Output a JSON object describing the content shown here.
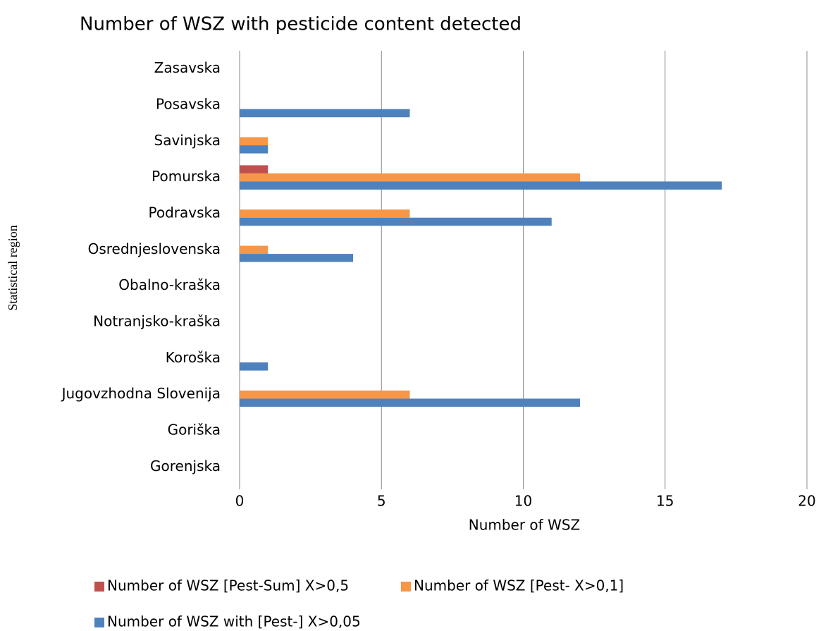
{
  "chart_data": {
    "type": "hbar",
    "title": "Number of WSZ with pesticide content detected",
    "x_label": "Number of WSZ",
    "y_label": "Statistical region",
    "categories": [
      "Zasavska",
      "Posavska",
      "Savinjska",
      "Pomurska",
      "Podravska",
      "Osrednjeslovenska",
      "Obalno-kraška",
      "Notranjsko-kraška",
      "Koroška",
      "Jugovzhodna Slovenija",
      "Goriška",
      "Gorenjska"
    ],
    "series": [
      {
        "name": "Number of WSZ [Pest-Sum] X>0,5",
        "color": "#c0504d",
        "values": [
          0,
          0,
          0,
          1,
          0,
          0,
          0,
          0,
          0,
          0,
          0,
          0
        ]
      },
      {
        "name": "Number of WSZ [Pest- X>0,1]",
        "color": "#f79646",
        "values": [
          0,
          0,
          1,
          12,
          6,
          1,
          0,
          0,
          0,
          6,
          0,
          0
        ]
      },
      {
        "name": "Number of WSZ with [Pest-] X>0,05",
        "color": "#4f81bd",
        "values": [
          0,
          6,
          1,
          17,
          11,
          4,
          0,
          0,
          1,
          12,
          0,
          0
        ]
      }
    ],
    "xlim": [
      0,
      20
    ],
    "xticks": [
      0,
      5,
      10,
      15,
      20
    ],
    "grid": true,
    "legend": "bottom"
  }
}
